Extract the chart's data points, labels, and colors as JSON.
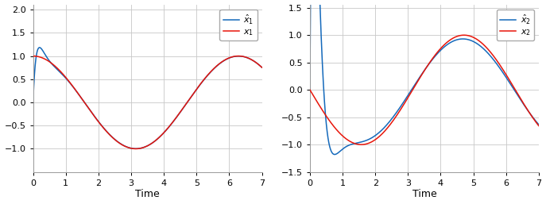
{
  "t_start": 0,
  "t_end": 7,
  "n_points": 10000,
  "x1_color": "#e8150a",
  "xhat1_color": "#1469bb",
  "x2_color": "#e8150a",
  "xhat2_color": "#1469bb",
  "legend1": [
    "$x_1$",
    "$\\hat{x}_1$"
  ],
  "legend2": [
    "$x_2$",
    "$\\hat{x}_2$"
  ],
  "xlabel": "Time",
  "ylim1": [
    -1.5,
    2.1
  ],
  "ylim2": [
    -1.5,
    1.55
  ],
  "yticks1": [
    -1.0,
    -0.5,
    0.0,
    0.5,
    1.0,
    1.5,
    2.0
  ],
  "yticks2": [
    -1.5,
    -1.0,
    -0.5,
    0.0,
    0.5,
    1.0,
    1.5
  ],
  "xticks": [
    0,
    1,
    2,
    3,
    4,
    5,
    6,
    7
  ],
  "bg_color": "#ffffff",
  "grid_color": "#c8c8c8",
  "lambda1": 5,
  "lambda2": 6,
  "lambda3": 7,
  "linewidth": 1.1,
  "figwidth": 6.87,
  "figheight": 2.57,
  "dpi": 100
}
